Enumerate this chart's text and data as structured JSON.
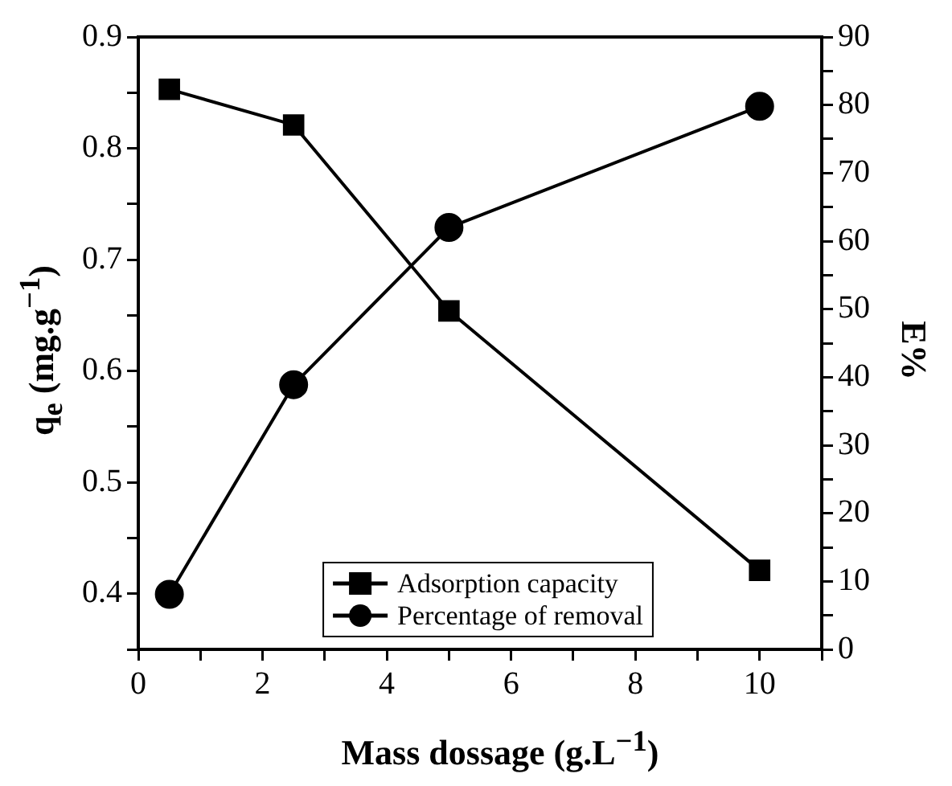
{
  "chart_data": {
    "type": "line",
    "xlabel": "Mass dossage (g.L$^{−1}$)",
    "ylabel": "q$_{e}$ (mg.g$^{−1}$)",
    "y2label": "E%",
    "x": [
      0.5,
      2.5,
      5,
      10
    ],
    "series": [
      {
        "name": "Adsorption capacity",
        "color": "#000000",
        "values": [
          0.853,
          0.821,
          0.654,
          0.421
        ],
        "marker": "square"
      },
      {
        "name": "Percentage of removal",
        "color": "#000000",
        "values": [
          8.1,
          38.9,
          62.0,
          79.8
        ],
        "axis": "y2",
        "marker": "circle"
      }
    ],
    "xlim": [
      0,
      11
    ],
    "xticks": [
      0,
      {
        "value": 1,
        "label": null
      },
      2,
      {
        "value": 3,
        "label": null
      },
      4,
      {
        "value": 5,
        "label": null
      },
      6,
      {
        "value": 7,
        "label": null
      },
      8,
      {
        "value": 9,
        "label": null
      },
      10,
      {
        "value": 11,
        "label": null
      }
    ],
    "ylim": [
      0.35,
      0.9
    ],
    "yticks": [
      {
        "value": 0.35,
        "label": null
      },
      0.4,
      {
        "value": 0.45,
        "label": null
      },
      0.5,
      {
        "value": 0.55,
        "label": null
      },
      0.6,
      {
        "value": 0.65,
        "label": null
      },
      0.7,
      {
        "value": 0.75,
        "label": null
      },
      0.8,
      {
        "value": 0.85,
        "label": null
      },
      0.9
    ],
    "y2lim": [
      0,
      90
    ],
    "y2ticks": [
      0,
      {
        "value": 5,
        "label": null
      },
      10,
      {
        "value": 15,
        "label": null
      },
      20,
      {
        "value": 25,
        "label": null
      },
      30,
      {
        "value": 35,
        "label": null
      },
      40,
      {
        "value": 45,
        "label": null
      },
      50,
      {
        "value": 55,
        "label": null
      },
      60,
      {
        "value": 65,
        "label": null
      },
      70,
      {
        "value": 75,
        "label": null
      },
      80,
      {
        "value": 85,
        "label": null
      },
      90
    ],
    "grid": false,
    "legend": "bottom",
    "line_style": "solid"
  }
}
